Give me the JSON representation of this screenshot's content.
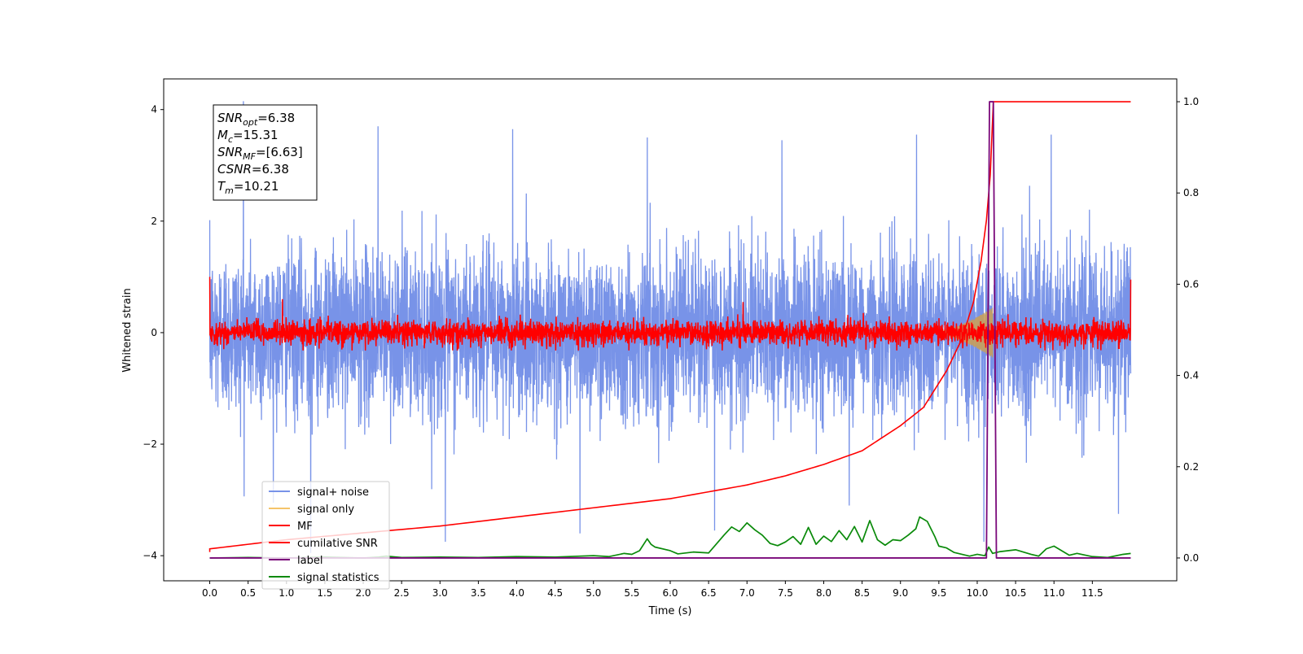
{
  "chart_data": {
    "type": "line",
    "xlabel": "Time (s)",
    "ylabel": "Whitened strain",
    "xlim": [
      -0.6,
      12.6
    ],
    "ylim_left": [
      -4.45,
      4.55
    ],
    "ylim_right": [
      -0.05,
      1.05
    ],
    "x_ticks": [
      0.0,
      0.5,
      1.0,
      1.5,
      2.0,
      2.5,
      3.0,
      3.5,
      4.0,
      4.5,
      5.0,
      5.5,
      6.0,
      6.5,
      7.0,
      7.5,
      8.0,
      8.5,
      9.0,
      9.5,
      10.0,
      10.5,
      11.0,
      11.5
    ],
    "x_tick_labels": [
      "0.0",
      "0.5",
      "1.0",
      "1.5",
      "2.0",
      "2.5",
      "3.0",
      "3.5",
      "4.0",
      "4.5",
      "5.0",
      "5.5",
      "6.0",
      "6.5",
      "7.0",
      "7.5",
      "8.0",
      "8.5",
      "9.0",
      "9.5",
      "10.0",
      "10.5",
      "11.0",
      "11.5"
    ],
    "y_ticks_left": [
      4,
      2,
      0,
      -2,
      -4
    ],
    "y_tick_labels_left": [
      "4",
      "2",
      "0",
      "−2",
      "−4"
    ],
    "y_ticks_right": [
      1.0,
      0.8,
      0.6,
      0.4,
      0.2,
      0.0
    ],
    "y_tick_labels_right": [
      "1.0",
      "0.8",
      "0.6",
      "0.4",
      "0.2",
      "0.0"
    ],
    "grid": false,
    "legend_position": "bottom-left",
    "colors": {
      "signal_noise": "#7893e8",
      "signal_only": "#f5c46a",
      "mf": "#ff0000",
      "cumulative_snr": "#ff0000",
      "label": "#7a087a",
      "signal_statistics": "#0a8a0a",
      "chirp_fill": "#c8a05a"
    },
    "annotation": {
      "lines": [
        {
          "base": "SNR",
          "sub": "opt",
          "value": "=6.38"
        },
        {
          "base": "M",
          "sub": "c",
          "value": "=15.31"
        },
        {
          "base": "SNR",
          "sub": "MF",
          "value": "=[6.63]"
        },
        {
          "base": "CSNR",
          "sub": "",
          "value": "=6.38"
        },
        {
          "base": "T",
          "sub": "m",
          "value": "=10.21"
        }
      ]
    },
    "series": [
      {
        "name": "signal+ noise",
        "axis": "left",
        "kind": "noise",
        "t_range": [
          0.0,
          12.0
        ],
        "typical_amplitude": 1.6,
        "peak_values": [
          4.15,
          -3.95,
          3.7,
          -3.75,
          3.65,
          -3.6,
          3.5,
          -3.55,
          3.45,
          -3.1,
          3.55,
          -3.75,
          3.55,
          -3.25
        ]
      },
      {
        "name": "signal only",
        "axis": "left",
        "kind": "chirp",
        "t_range": [
          9.4,
          10.2
        ],
        "peak_amplitude": 0.45
      },
      {
        "name": "MF",
        "axis": "left",
        "kind": "noise",
        "t_range": [
          0.0,
          12.0
        ],
        "typical_amplitude": 0.28,
        "edge_values": [
          1.0,
          0.95
        ],
        "peak_values": [
          0.6,
          0.55
        ]
      },
      {
        "name": "cumilative SNR",
        "axis": "right",
        "x": [
          0.0,
          1.0,
          2.0,
          3.0,
          4.0,
          5.0,
          6.0,
          7.0,
          7.5,
          8.0,
          8.5,
          9.0,
          9.3,
          9.6,
          9.8,
          9.95,
          10.05,
          10.12,
          10.17,
          10.21,
          12.0
        ],
        "y": [
          0.02,
          0.04,
          0.055,
          0.07,
          0.09,
          0.11,
          0.13,
          0.16,
          0.18,
          0.205,
          0.235,
          0.29,
          0.33,
          0.41,
          0.48,
          0.56,
          0.65,
          0.74,
          0.84,
          1.0,
          1.0
        ]
      },
      {
        "name": "label",
        "axis": "right",
        "x": [
          0.0,
          10.12,
          10.16,
          10.21,
          10.25,
          12.0
        ],
        "y": [
          0.0,
          0.0,
          1.0,
          1.0,
          0.0,
          0.0
        ]
      },
      {
        "name": "signal statistics",
        "axis": "right",
        "x": [
          0.0,
          0.5,
          1.0,
          1.5,
          2.0,
          2.2,
          2.3,
          2.5,
          3.0,
          3.5,
          4.0,
          4.5,
          5.0,
          5.2,
          5.4,
          5.5,
          5.6,
          5.7,
          5.75,
          5.8,
          6.0,
          6.1,
          6.3,
          6.5,
          6.7,
          6.8,
          6.9,
          7.0,
          7.1,
          7.2,
          7.3,
          7.4,
          7.5,
          7.6,
          7.7,
          7.8,
          7.9,
          8.0,
          8.1,
          8.2,
          8.3,
          8.4,
          8.5,
          8.6,
          8.7,
          8.8,
          8.9,
          9.0,
          9.1,
          9.2,
          9.25,
          9.35,
          9.45,
          9.5,
          9.6,
          9.7,
          9.8,
          9.9,
          10.0,
          10.1,
          10.15,
          10.2,
          10.3,
          10.5,
          10.7,
          10.8,
          10.9,
          11.0,
          11.1,
          11.2,
          11.3,
          11.5,
          11.7,
          11.9,
          12.0
        ],
        "y": [
          0.0,
          0.001,
          0.0,
          0.002,
          0.0,
          0.002,
          0.004,
          0.001,
          0.002,
          0.001,
          0.003,
          0.002,
          0.005,
          0.003,
          0.01,
          0.008,
          0.016,
          0.042,
          0.03,
          0.024,
          0.016,
          0.009,
          0.013,
          0.011,
          0.05,
          0.068,
          0.058,
          0.077,
          0.062,
          0.05,
          0.032,
          0.027,
          0.035,
          0.047,
          0.03,
          0.067,
          0.03,
          0.048,
          0.036,
          0.06,
          0.04,
          0.069,
          0.035,
          0.082,
          0.04,
          0.028,
          0.04,
          0.038,
          0.05,
          0.064,
          0.09,
          0.08,
          0.046,
          0.026,
          0.022,
          0.012,
          0.008,
          0.004,
          0.008,
          0.005,
          0.024,
          0.01,
          0.014,
          0.018,
          0.008,
          0.004,
          0.02,
          0.026,
          0.016,
          0.006,
          0.01,
          0.003,
          0.001,
          0.008,
          0.01
        ]
      }
    ]
  }
}
